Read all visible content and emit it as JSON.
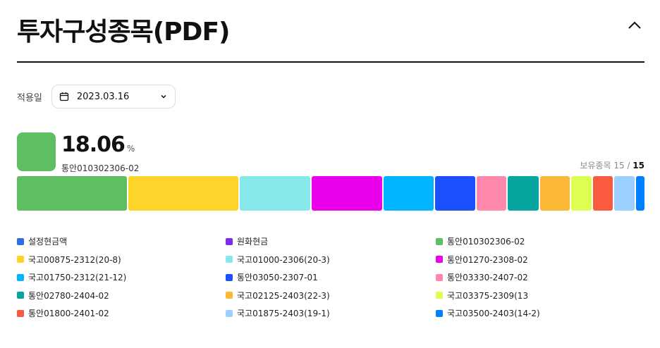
{
  "header": {
    "title": "투자구성종목(PDF)"
  },
  "date": {
    "label": "적용일",
    "value": "2023.03.16"
  },
  "highlight": {
    "percent": "18.06",
    "unit": "%",
    "name": "통안010302306-02",
    "color": "#5dbf61"
  },
  "holdings": {
    "label": "보유종목 15 / ",
    "total": "15"
  },
  "segments": [
    {
      "name": "통안010302306-02",
      "share": 18.06,
      "color": "#5dbf61"
    },
    {
      "name": "국고00875-2312(20-8)",
      "share": 18.0,
      "color": "#ffd42a"
    },
    {
      "name": "국고01000-2306(20-3)",
      "share": 11.5,
      "color": "#86e8e8"
    },
    {
      "name": "통안01270-2308-02",
      "share": 11.5,
      "color": "#ea00ea"
    },
    {
      "name": "국고01750-2312(21-12)",
      "share": 8.2,
      "color": "#00b4ff"
    },
    {
      "name": "통안03050-2307-01",
      "share": 6.6,
      "color": "#1c50ff"
    },
    {
      "name": "통안03330-2407-02",
      "share": 4.9,
      "color": "#ff87aa"
    },
    {
      "name": "통안02780-2404-02",
      "share": 5.0,
      "color": "#07a59f"
    },
    {
      "name": "국고02125-2403(22-3)",
      "share": 4.9,
      "color": "#fbb837"
    },
    {
      "name": "국고03375-2309(13",
      "share": 3.3,
      "color": "#ddff51"
    },
    {
      "name": "통안01800-2401-02",
      "share": 3.3,
      "color": "#fa5a3f"
    },
    {
      "name": "국고01875-2403(19-1)",
      "share": 3.3,
      "color": "#9cd0ff"
    },
    {
      "name": "국고03500-2403(14-2)",
      "share": 1.4,
      "color": "#0080ff"
    }
  ],
  "legend": [
    {
      "label": "설정현금액",
      "color": "#2d6de6"
    },
    {
      "label": "원화현금",
      "color": "#7a2ee8"
    },
    {
      "label": "통안010302306-02",
      "color": "#5dbf61"
    },
    {
      "label": "국고00875-2312(20-8)",
      "color": "#ffd42a"
    },
    {
      "label": "국고01000-2306(20-3)",
      "color": "#86e8e8"
    },
    {
      "label": "통안01270-2308-02",
      "color": "#ea00ea"
    },
    {
      "label": "국고01750-2312(21-12)",
      "color": "#00b4ff"
    },
    {
      "label": "통안03050-2307-01",
      "color": "#1c50ff"
    },
    {
      "label": "통안03330-2407-02",
      "color": "#ff87aa"
    },
    {
      "label": "통안02780-2404-02",
      "color": "#07a59f"
    },
    {
      "label": "국고02125-2403(22-3)",
      "color": "#fbb837"
    },
    {
      "label": "국고03375-2309(13",
      "color": "#ddff51"
    },
    {
      "label": "통안01800-2401-02",
      "color": "#fa5a3f"
    },
    {
      "label": "국고01875-2403(19-1)",
      "color": "#9cd0ff"
    },
    {
      "label": "국고03500-2403(14-2)",
      "color": "#0080ff"
    }
  ]
}
